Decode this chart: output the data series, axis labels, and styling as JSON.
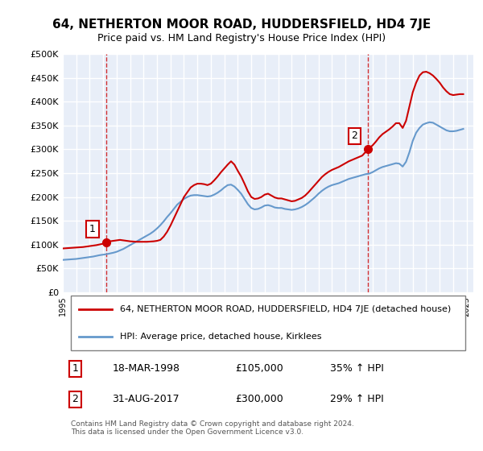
{
  "title": "64, NETHERTON MOOR ROAD, HUDDERSFIELD, HD4 7JE",
  "subtitle": "Price paid vs. HM Land Registry's House Price Index (HPI)",
  "xlabel": "",
  "ylabel": "",
  "ylim": [
    0,
    500000
  ],
  "yticks": [
    0,
    50000,
    100000,
    150000,
    200000,
    250000,
    300000,
    350000,
    400000,
    450000,
    500000
  ],
  "ytick_labels": [
    "£0",
    "£50K",
    "£100K",
    "£150K",
    "£200K",
    "£250K",
    "£300K",
    "£350K",
    "£400K",
    "£450K",
    "£500K"
  ],
  "background_color": "#FFFFFF",
  "plot_bg_color": "#E8EEF8",
  "grid_color": "#FFFFFF",
  "red_line_color": "#CC0000",
  "blue_line_color": "#6699CC",
  "marker1_date_num": 1998.21,
  "marker1_price": 105000,
  "marker1_label": "1",
  "marker2_date_num": 2017.67,
  "marker2_price": 300000,
  "marker2_label": "2",
  "legend_line1": "64, NETHERTON MOOR ROAD, HUDDERSFIELD, HD4 7JE (detached house)",
  "legend_line2": "HPI: Average price, detached house, Kirklees",
  "annotation1_date": "18-MAR-1998",
  "annotation1_price": "£105,000",
  "annotation1_hpi": "35% ↑ HPI",
  "annotation2_date": "31-AUG-2017",
  "annotation2_price": "£300,000",
  "annotation2_hpi": "29% ↑ HPI",
  "footer": "Contains HM Land Registry data © Crown copyright and database right 2024.\nThis data is licensed under the Open Government Licence v3.0.",
  "hpi_x": [
    1995.0,
    1995.25,
    1995.5,
    1995.75,
    1996.0,
    1996.25,
    1996.5,
    1996.75,
    1997.0,
    1997.25,
    1997.5,
    1997.75,
    1998.0,
    1998.25,
    1998.5,
    1998.75,
    1999.0,
    1999.25,
    1999.5,
    1999.75,
    2000.0,
    2000.25,
    2000.5,
    2000.75,
    2001.0,
    2001.25,
    2001.5,
    2001.75,
    2002.0,
    2002.25,
    2002.5,
    2002.75,
    2003.0,
    2003.25,
    2003.5,
    2003.75,
    2004.0,
    2004.25,
    2004.5,
    2004.75,
    2005.0,
    2005.25,
    2005.5,
    2005.75,
    2006.0,
    2006.25,
    2006.5,
    2006.75,
    2007.0,
    2007.25,
    2007.5,
    2007.75,
    2008.0,
    2008.25,
    2008.5,
    2008.75,
    2009.0,
    2009.25,
    2009.5,
    2009.75,
    2010.0,
    2010.25,
    2010.5,
    2010.75,
    2011.0,
    2011.25,
    2011.5,
    2011.75,
    2012.0,
    2012.25,
    2012.5,
    2012.75,
    2013.0,
    2013.25,
    2013.5,
    2013.75,
    2014.0,
    2014.25,
    2014.5,
    2014.75,
    2015.0,
    2015.25,
    2015.5,
    2015.75,
    2016.0,
    2016.25,
    2016.5,
    2016.75,
    2017.0,
    2017.25,
    2017.5,
    2017.75,
    2018.0,
    2018.25,
    2018.5,
    2018.75,
    2019.0,
    2019.25,
    2019.5,
    2019.75,
    2020.0,
    2020.25,
    2020.5,
    2020.75,
    2021.0,
    2021.25,
    2021.5,
    2021.75,
    2022.0,
    2022.25,
    2022.5,
    2022.75,
    2023.0,
    2023.25,
    2023.5,
    2023.75,
    2024.0,
    2024.25,
    2024.5,
    2024.75
  ],
  "hpi_y": [
    68000,
    68500,
    69000,
    69500,
    70000,
    71000,
    72000,
    73000,
    74000,
    75000,
    76500,
    78000,
    79000,
    80000,
    81500,
    83000,
    85000,
    88000,
    91000,
    95000,
    99000,
    103000,
    107000,
    111000,
    115000,
    119000,
    123000,
    128000,
    134000,
    141000,
    149000,
    158000,
    166000,
    175000,
    184000,
    190000,
    196000,
    200000,
    203000,
    204000,
    204000,
    203000,
    202000,
    201000,
    202000,
    205000,
    209000,
    214000,
    220000,
    225000,
    226000,
    222000,
    215000,
    207000,
    196000,
    185000,
    177000,
    174000,
    175000,
    178000,
    182000,
    183000,
    181000,
    178000,
    177000,
    177000,
    175000,
    174000,
    173000,
    174000,
    176000,
    179000,
    183000,
    188000,
    194000,
    200000,
    207000,
    213000,
    218000,
    222000,
    225000,
    227000,
    229000,
    232000,
    235000,
    238000,
    240000,
    242000,
    244000,
    246000,
    248000,
    249000,
    252000,
    256000,
    260000,
    263000,
    265000,
    267000,
    269000,
    271000,
    270000,
    264000,
    274000,
    294000,
    318000,
    335000,
    345000,
    352000,
    355000,
    357000,
    356000,
    352000,
    348000,
    344000,
    340000,
    338000,
    338000,
    339000,
    341000,
    343000
  ],
  "red_x": [
    1995.0,
    1995.25,
    1995.5,
    1995.75,
    1996.0,
    1996.25,
    1996.5,
    1996.75,
    1997.0,
    1997.25,
    1997.5,
    1997.75,
    1998.0,
    1998.21,
    1998.5,
    1998.75,
    1999.0,
    1999.25,
    1999.5,
    1999.75,
    2000.0,
    2000.25,
    2000.5,
    2000.75,
    2001.0,
    2001.25,
    2001.5,
    2001.75,
    2002.0,
    2002.25,
    2002.5,
    2002.75,
    2003.0,
    2003.25,
    2003.5,
    2003.75,
    2004.0,
    2004.25,
    2004.5,
    2004.75,
    2005.0,
    2005.25,
    2005.5,
    2005.75,
    2006.0,
    2006.25,
    2006.5,
    2006.75,
    2007.0,
    2007.25,
    2007.5,
    2007.75,
    2008.0,
    2008.25,
    2008.5,
    2008.75,
    2009.0,
    2009.25,
    2009.5,
    2009.75,
    2010.0,
    2010.25,
    2010.5,
    2010.75,
    2011.0,
    2011.25,
    2011.5,
    2011.75,
    2012.0,
    2012.25,
    2012.5,
    2012.75,
    2013.0,
    2013.25,
    2013.5,
    2013.75,
    2014.0,
    2014.25,
    2014.5,
    2014.75,
    2015.0,
    2015.25,
    2015.5,
    2015.75,
    2016.0,
    2016.25,
    2016.5,
    2016.75,
    2017.0,
    2017.25,
    2017.67,
    2017.75,
    2018.0,
    2018.25,
    2018.5,
    2018.75,
    2019.0,
    2019.25,
    2019.5,
    2019.75,
    2020.0,
    2020.25,
    2020.5,
    2020.75,
    2021.0,
    2021.25,
    2021.5,
    2021.75,
    2022.0,
    2022.25,
    2022.5,
    2022.75,
    2023.0,
    2023.25,
    2023.5,
    2023.75,
    2024.0,
    2024.25,
    2024.5,
    2024.75
  ],
  "red_y": [
    92000,
    92500,
    93000,
    93500,
    94000,
    94500,
    95000,
    96000,
    97000,
    98000,
    99000,
    100500,
    102000,
    105000,
    107000,
    108000,
    109000,
    110000,
    109000,
    108000,
    107000,
    106500,
    106000,
    106000,
    106000,
    106000,
    106500,
    107000,
    108000,
    110000,
    117000,
    127000,
    140000,
    155000,
    170000,
    185000,
    200000,
    210000,
    220000,
    225000,
    228000,
    228000,
    227000,
    225000,
    228000,
    235000,
    243000,
    252000,
    260000,
    268000,
    275000,
    268000,
    255000,
    243000,
    228000,
    212000,
    200000,
    196000,
    197000,
    200000,
    205000,
    207000,
    203000,
    199000,
    197000,
    197000,
    195000,
    193000,
    191000,
    192000,
    195000,
    198000,
    203000,
    210000,
    218000,
    226000,
    234000,
    242000,
    248000,
    253000,
    257000,
    260000,
    263000,
    267000,
    271000,
    275000,
    278000,
    281000,
    284000,
    287000,
    300000,
    303000,
    308000,
    316000,
    325000,
    332000,
    337000,
    342000,
    348000,
    355000,
    355000,
    345000,
    360000,
    390000,
    420000,
    440000,
    455000,
    462000,
    463000,
    460000,
    455000,
    448000,
    440000,
    430000,
    422000,
    416000,
    414000,
    415000,
    416000,
    416000
  ]
}
